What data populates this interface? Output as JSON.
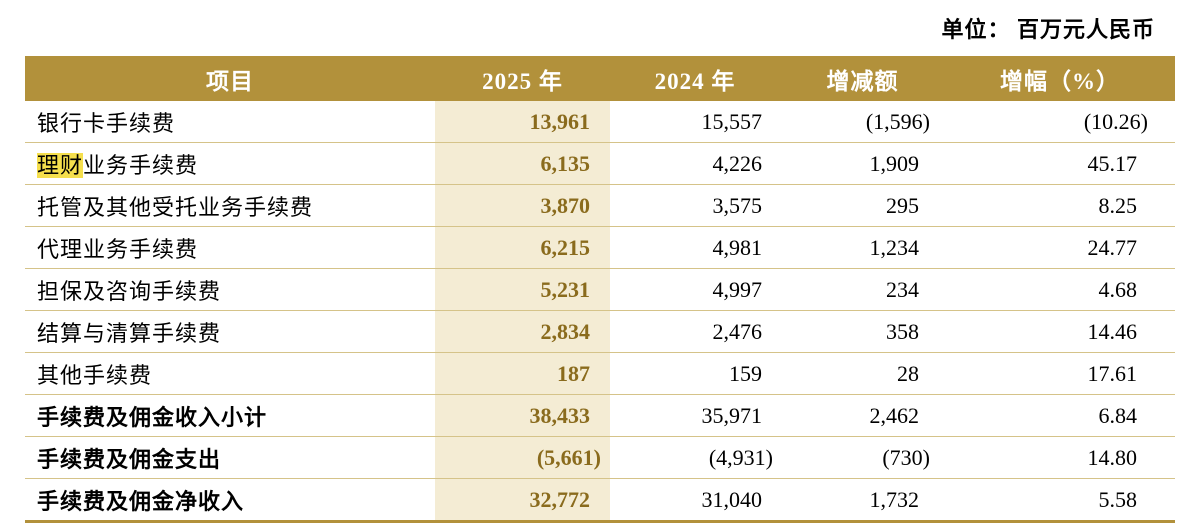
{
  "unit_label": "单位： 百万元人民币",
  "columns": {
    "item": "项目",
    "y2025": "2025 年",
    "y2024": "2024 年",
    "change": "增减额",
    "pct": "增幅（%）"
  },
  "rows": [
    {
      "item": [
        {
          "text": "银行卡手续费",
          "highlight": false
        }
      ],
      "v2025": "13,961",
      "v2024": "15,557",
      "change": "(1,596)",
      "pct": "(10.26)",
      "bold": false
    },
    {
      "item": [
        {
          "text": "理财",
          "highlight": true
        },
        {
          "text": "业务手续费",
          "highlight": false
        }
      ],
      "v2025": "6,135",
      "v2024": "4,226",
      "change": "1,909",
      "pct": "45.17",
      "bold": false
    },
    {
      "item": [
        {
          "text": "托管及其他受托业务手续费",
          "highlight": false
        }
      ],
      "v2025": "3,870",
      "v2024": "3,575",
      "change": "295",
      "pct": "8.25",
      "bold": false
    },
    {
      "item": [
        {
          "text": "代理业务手续费",
          "highlight": false
        }
      ],
      "v2025": "6,215",
      "v2024": "4,981",
      "change": "1,234",
      "pct": "24.77",
      "bold": false
    },
    {
      "item": [
        {
          "text": "担保及咨询手续费",
          "highlight": false
        }
      ],
      "v2025": "5,231",
      "v2024": "4,997",
      "change": "234",
      "pct": "4.68",
      "bold": false
    },
    {
      "item": [
        {
          "text": "结算与清算手续费",
          "highlight": false
        }
      ],
      "v2025": "2,834",
      "v2024": "2,476",
      "change": "358",
      "pct": "14.46",
      "bold": false
    },
    {
      "item": [
        {
          "text": "其他手续费",
          "highlight": false
        }
      ],
      "v2025": "187",
      "v2024": "159",
      "change": "28",
      "pct": "17.61",
      "bold": false
    },
    {
      "item": [
        {
          "text": "手续费及佣金收入小计",
          "highlight": false
        }
      ],
      "v2025": "38,433",
      "v2024": "35,971",
      "change": "2,462",
      "pct": "6.84",
      "bold": true
    },
    {
      "item": [
        {
          "text": "手续费及佣金支出",
          "highlight": false
        }
      ],
      "v2025": "(5,661)",
      "v2024": "(4,931)",
      "change": "(730)",
      "pct": "14.80",
      "bold": true
    },
    {
      "item": [
        {
          "text": "手续费及佣金净收入",
          "highlight": false
        }
      ],
      "v2025": "32,772",
      "v2024": "31,040",
      "change": "1,732",
      "pct": "5.58",
      "bold": true
    }
  ],
  "colors": {
    "header_bg": "#B2913B",
    "band_bg": "#F4ECD4",
    "value_2025_text": "#8A6B1D",
    "row_separator": "#D5C389",
    "bottom_rule": "#B2913B",
    "search_highlight": "#F5DF4D"
  }
}
